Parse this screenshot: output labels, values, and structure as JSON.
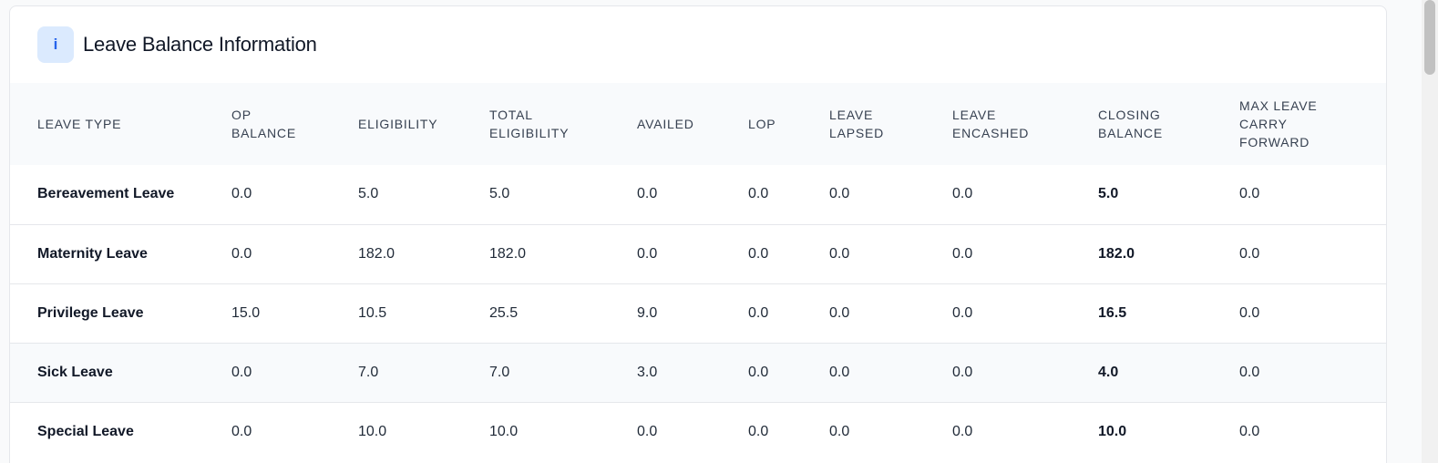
{
  "card": {
    "title": "Leave Balance Information",
    "info_icon_glyph": "i",
    "info_icon_name": "info-icon"
  },
  "table": {
    "headers": [
      "LEAVE TYPE",
      "OP BALANCE",
      "ELIGIBILITY",
      "TOTAL ELIGIBILITY",
      "AVAILED",
      "LOP",
      "LEAVE LAPSED",
      "LEAVE ENCASHED",
      "CLOSING BALANCE",
      "MAX LEAVE CARRY FORWARD"
    ],
    "rows": [
      [
        "Bereavement Leave",
        "0.0",
        "5.0",
        "5.0",
        "0.0",
        "0.0",
        "0.0",
        "0.0",
        "5.0",
        "0.0"
      ],
      [
        "Maternity Leave",
        "0.0",
        "182.0",
        "182.0",
        "0.0",
        "0.0",
        "0.0",
        "0.0",
        "182.0",
        "0.0"
      ],
      [
        "Privilege Leave",
        "15.0",
        "10.5",
        "25.5",
        "9.0",
        "0.0",
        "0.0",
        "0.0",
        "16.5",
        "0.0"
      ],
      [
        "Sick Leave",
        "0.0",
        "7.0",
        "7.0",
        "3.0",
        "0.0",
        "0.0",
        "0.0",
        "4.0",
        "0.0"
      ],
      [
        "Special Leave",
        "0.0",
        "10.0",
        "10.0",
        "0.0",
        "0.0",
        "0.0",
        "0.0",
        "10.0",
        "0.0"
      ]
    ]
  },
  "colors": {
    "accent": "#2563eb",
    "accent_bg": "#dbeafe",
    "header_bg": "#f8fafc",
    "border": "#e5e7eb"
  }
}
